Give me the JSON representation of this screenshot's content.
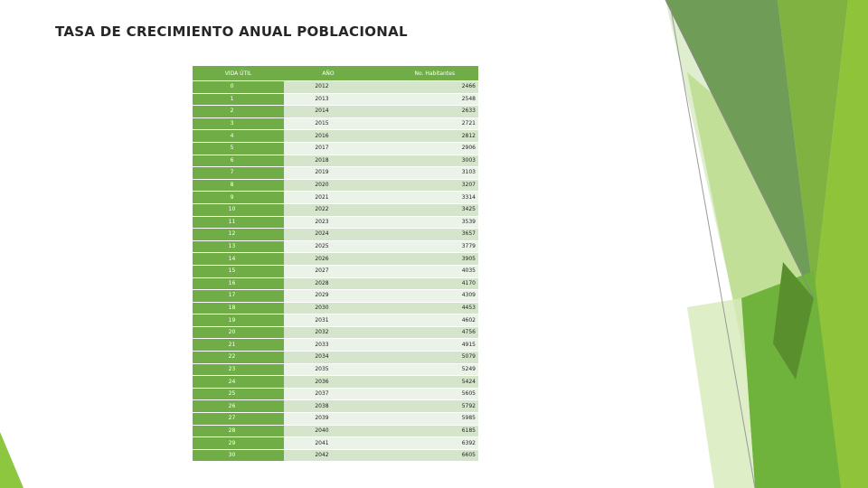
{
  "title": "TASA DE CRECIMIENTO ANUAL POBLACIONAL",
  "table": {
    "headers": [
      "VIDA ÚTIL",
      "AÑO",
      "No. Habitantes"
    ],
    "rows": [
      [
        "0",
        "2012",
        "2466"
      ],
      [
        "1",
        "2013",
        "2548"
      ],
      [
        "2",
        "2014",
        "2633"
      ],
      [
        "3",
        "2015",
        "2721"
      ],
      [
        "4",
        "2016",
        "2812"
      ],
      [
        "5",
        "2017",
        "2906"
      ],
      [
        "6",
        "2018",
        "3003"
      ],
      [
        "7",
        "2019",
        "3103"
      ],
      [
        "8",
        "2020",
        "3207"
      ],
      [
        "9",
        "2021",
        "3314"
      ],
      [
        "10",
        "2022",
        "3425"
      ],
      [
        "11",
        "2023",
        "3539"
      ],
      [
        "12",
        "2024",
        "3657"
      ],
      [
        "13",
        "2025",
        "3779"
      ],
      [
        "14",
        "2026",
        "3905"
      ],
      [
        "15",
        "2027",
        "4035"
      ],
      [
        "16",
        "2028",
        "4170"
      ],
      [
        "17",
        "2029",
        "4309"
      ],
      [
        "18",
        "2030",
        "4453"
      ],
      [
        "19",
        "2031",
        "4602"
      ],
      [
        "20",
        "2032",
        "4756"
      ],
      [
        "21",
        "2033",
        "4915"
      ],
      [
        "22",
        "2034",
        "5079"
      ],
      [
        "23",
        "2035",
        "5249"
      ],
      [
        "24",
        "2036",
        "5424"
      ],
      [
        "25",
        "2037",
        "5605"
      ],
      [
        "26",
        "2038",
        "5792"
      ],
      [
        "27",
        "2039",
        "5985"
      ],
      [
        "28",
        "2040",
        "6185"
      ],
      [
        "29",
        "2041",
        "6392"
      ],
      [
        "30",
        "2042",
        "6605"
      ]
    ]
  },
  "colors": {
    "header_green": "#70ad47",
    "row_odd": "#d5e5cc",
    "row_even": "#ebf2e7"
  }
}
